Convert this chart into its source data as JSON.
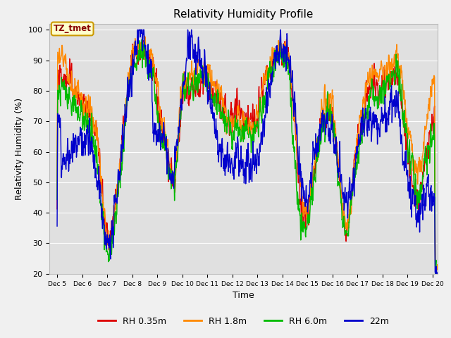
{
  "title": "Relativity Humidity Profile",
  "xlabel": "Time",
  "ylabel": "Relativity Humidity (%)",
  "ylim": [
    20,
    102
  ],
  "yticks": [
    20,
    30,
    40,
    50,
    60,
    70,
    80,
    90,
    100
  ],
  "series_labels": [
    "RH 0.35m",
    "RH 1.8m",
    "RH 6.0m",
    "22m"
  ],
  "series_colors": [
    "#dd0000",
    "#ff8800",
    "#00bb00",
    "#0000cc"
  ],
  "fig_bg": "#f0f0f0",
  "ax_bg": "#e0e0e0",
  "grid_color": "#ffffff",
  "annotation_text": "TZ_tmet",
  "annotation_color": "#880000",
  "annotation_bg": "#ffffcc",
  "annotation_edge": "#cc9900"
}
